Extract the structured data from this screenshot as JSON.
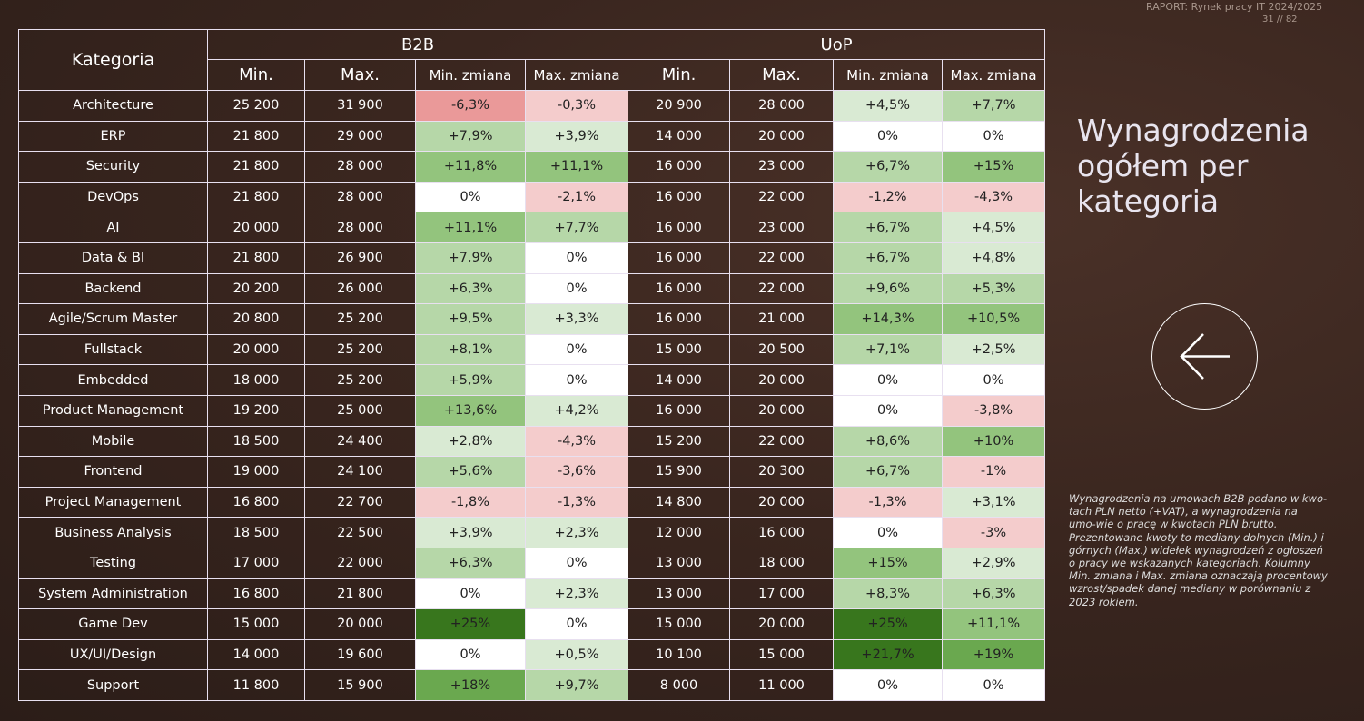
{
  "header": {
    "report": "RAPORT: Rynek pracy IT 2024/2025",
    "page": "31 // 82"
  },
  "table": {
    "category_header": "Kategoria",
    "groups": [
      "B2B",
      "UoP"
    ],
    "subheaders": [
      "Min.",
      "Max.",
      "Min. zmiana",
      "Max. zmiana",
      "Min.",
      "Max.",
      "Min. zmiana",
      "Max. zmiana"
    ],
    "rows": [
      [
        "Architecture",
        "25 200",
        "31 900",
        "-6,3%",
        "-0,3%",
        "20 900",
        "28 000",
        "+4,5%",
        "+7,7%"
      ],
      [
        "ERP",
        "21 800",
        "29 000",
        "+7,9%",
        "+3,9%",
        "14 000",
        "20 000",
        "0%",
        "0%"
      ],
      [
        "Security",
        "21 800",
        "28 000",
        "+11,8%",
        "+11,1%",
        "16 000",
        "23 000",
        "+6,7%",
        "+15%"
      ],
      [
        "DevOps",
        "21 800",
        "28 000",
        "0%",
        "-2,1%",
        "16 000",
        "22 000",
        "-1,2%",
        "-4,3%"
      ],
      [
        "AI",
        "20 000",
        "28 000",
        "+11,1%",
        "+7,7%",
        "16 000",
        "23 000",
        "+6,7%",
        "+4,5%"
      ],
      [
        "Data & BI",
        "21 800",
        "26 900",
        "+7,9%",
        "0%",
        "16 000",
        "22 000",
        "+6,7%",
        "+4,8%"
      ],
      [
        "Backend",
        "20 200",
        "26 000",
        "+6,3%",
        "0%",
        "16 000",
        "22 000",
        "+9,6%",
        "+5,3%"
      ],
      [
        "Agile/Scrum Master",
        "20 800",
        "25 200",
        "+9,5%",
        "+3,3%",
        "16 000",
        "21 000",
        "+14,3%",
        "+10,5%"
      ],
      [
        "Fullstack",
        "20 000",
        "25 200",
        "+8,1%",
        "0%",
        "15 000",
        "20 500",
        "+7,1%",
        "+2,5%"
      ],
      [
        "Embedded",
        "18 000",
        "25 200",
        "+5,9%",
        "0%",
        "14 000",
        "20 000",
        "0%",
        "0%"
      ],
      [
        "Product Management",
        "19 200",
        "25 000",
        "+13,6%",
        "+4,2%",
        "16 000",
        "20 000",
        "0%",
        "-3,8%"
      ],
      [
        "Mobile",
        "18 500",
        "24 400",
        "+2,8%",
        "-4,3%",
        "15 200",
        "22 000",
        "+8,6%",
        "+10%"
      ],
      [
        "Frontend",
        "19 000",
        "24 100",
        "+5,6%",
        "-3,6%",
        "15 900",
        "20 300",
        "+6,7%",
        "-1%"
      ],
      [
        "Project Management",
        "16 800",
        "22 700",
        "-1,8%",
        "-1,3%",
        "14 800",
        "20 000",
        "-1,3%",
        "+3,1%"
      ],
      [
        "Business Analysis",
        "18 500",
        "22 500",
        "+3,9%",
        "+2,3%",
        "12 000",
        "16 000",
        "0%",
        "-3%"
      ],
      [
        "Testing",
        "17 000",
        "22 000",
        "+6,3%",
        "0%",
        "13 000",
        "18 000",
        "+15%",
        "+2,9%"
      ],
      [
        "System Administration",
        "16 800",
        "21 800",
        "0%",
        "+2,3%",
        "13 000",
        "17 000",
        "+8,3%",
        "+6,3%"
      ],
      [
        "Game Dev",
        "15 000",
        "20 000",
        "+25%",
        "0%",
        "15 000",
        "20 000",
        "+25%",
        "+11,1%"
      ],
      [
        "UX/UI/Design",
        "14 000",
        "19 600",
        "0%",
        "+0,5%",
        "10 100",
        "15 000",
        "+21,7%",
        "+19%"
      ],
      [
        "Support",
        "11 800",
        "15 900",
        "+18%",
        "+9,7%",
        "8 000",
        "11 000",
        "0%",
        "0%"
      ]
    ]
  },
  "side": {
    "title_lines": [
      "Wynagrodzenia",
      "ogółem per",
      "kategoria"
    ],
    "note": "Wynagrodzenia na umowach B2B podano w kwo-tach PLN netto (+VAT), a wynagrodzenia na umo-wie o pracę w kwotach PLN brutto. Prezentowane kwoty to mediany dolnych (Min.) i górnych (Max.) widełek wynagrodzeń z ogłoszeń o pracy we wskazanych kategoriach. Kolumny Min. zmiana i Max. zmiana oznaczają procentowy wzrost/spadek danej mediany w porównaniu z 2023 rokiem."
  }
}
